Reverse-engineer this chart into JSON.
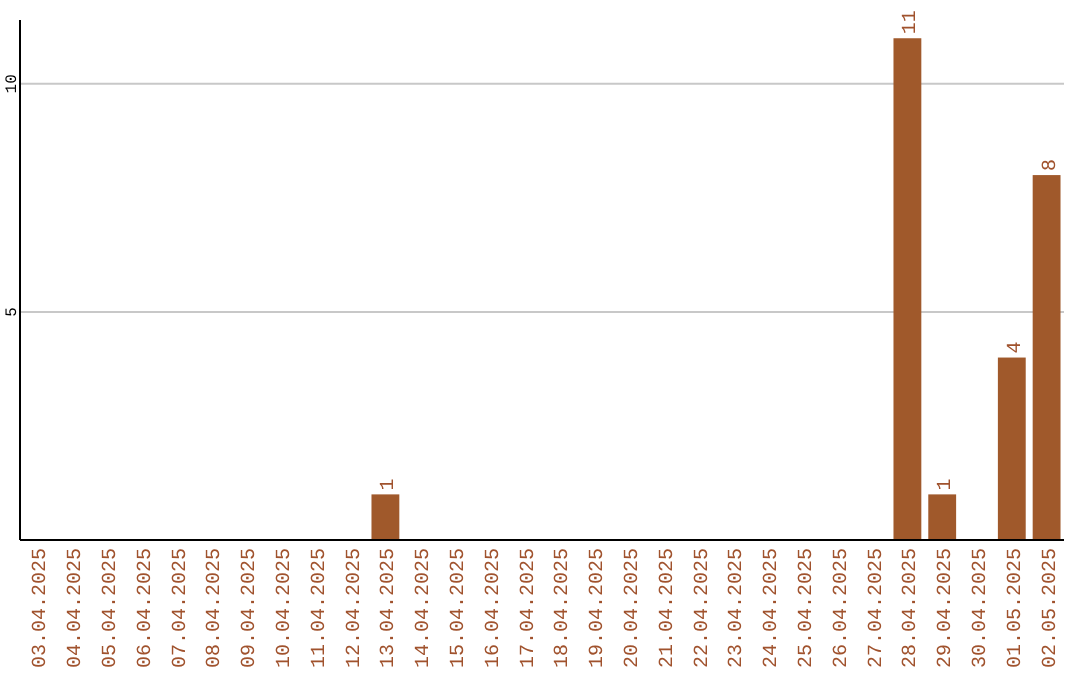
{
  "chart_data": {
    "type": "bar",
    "categories": [
      "03.04.2025",
      "04.04.2025",
      "05.04.2025",
      "06.04.2025",
      "07.04.2025",
      "08.04.2025",
      "09.04.2025",
      "10.04.2025",
      "11.04.2025",
      "12.04.2025",
      "13.04.2025",
      "14.04.2025",
      "15.04.2025",
      "16.04.2025",
      "17.04.2025",
      "18.04.2025",
      "19.04.2025",
      "20.04.2025",
      "21.04.2025",
      "22.04.2025",
      "23.04.2025",
      "24.04.2025",
      "25.04.2025",
      "26.04.2025",
      "27.04.2025",
      "28.04.2025",
      "29.04.2025",
      "30.04.2025",
      "01.05.2025",
      "02.05.2025"
    ],
    "values": [
      0,
      0,
      0,
      0,
      0,
      0,
      0,
      0,
      0,
      0,
      1,
      0,
      0,
      0,
      0,
      0,
      0,
      0,
      0,
      0,
      0,
      0,
      0,
      0,
      0,
      11,
      1,
      0,
      4,
      8
    ],
    "value_labels": [
      null,
      null,
      null,
      null,
      null,
      null,
      null,
      null,
      null,
      null,
      "1",
      null,
      null,
      null,
      null,
      null,
      null,
      null,
      null,
      null,
      null,
      null,
      null,
      null,
      null,
      "11",
      "1",
      null,
      "4",
      "8"
    ],
    "color": "#a0592b",
    "ylim": [
      0,
      11.4
    ],
    "yticks": [
      5,
      10
    ],
    "grid": "y"
  }
}
